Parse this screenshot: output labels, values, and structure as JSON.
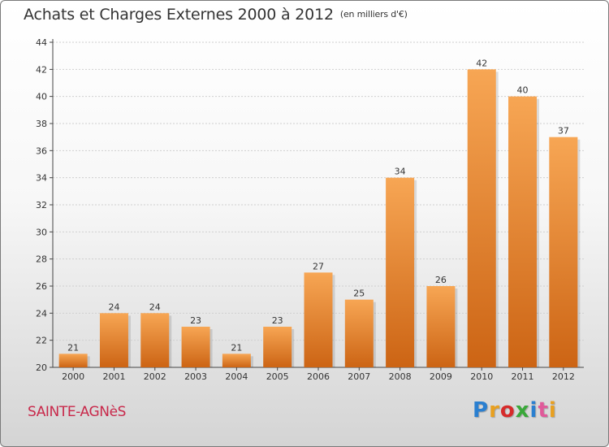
{
  "header": {
    "title": "Achats et Charges Externes 2000 à 2012",
    "units": "(en milliers d'€)"
  },
  "footer": {
    "commune": "SAINTE-AGNèS",
    "logo": {
      "letters": [
        "P",
        "r",
        "o",
        "x",
        "i",
        "t",
        "i"
      ],
      "colors": [
        "#2a7fd0",
        "#e8a020",
        "#d62b2b",
        "#3aa83a",
        "#2a7fd0",
        "#e05a9a",
        "#e8a020"
      ]
    }
  },
  "colors": {
    "bar_top": "#f7a654",
    "bar_bottom": "#cc6414",
    "grid": "#cfcfcf",
    "axis": "#444444"
  },
  "chart_data": {
    "type": "bar",
    "title": "Achats et Charges Externes 2000 à 2012",
    "subtitle": "(en milliers d'€)",
    "categories": [
      "2000",
      "2001",
      "2002",
      "2003",
      "2004",
      "2005",
      "2006",
      "2007",
      "2008",
      "2009",
      "2010",
      "2011",
      "2012"
    ],
    "values": [
      21,
      24,
      24,
      23,
      21,
      23,
      27,
      25,
      34,
      26,
      42,
      40,
      37
    ],
    "ylim": [
      20,
      44
    ],
    "yticks": [
      20,
      22,
      24,
      26,
      28,
      30,
      32,
      34,
      36,
      38,
      40,
      42,
      44
    ],
    "grid": true,
    "legend": "none"
  }
}
